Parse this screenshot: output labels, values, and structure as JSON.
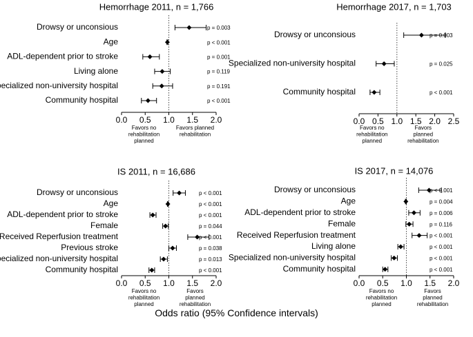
{
  "figure": {
    "xaxis_caption": "Odds ratio (95% Confidence intervals)"
  },
  "chart_data": [
    {
      "type": "forest",
      "title": "Hemorrhage 2011, n = 1,766",
      "xlim": [
        0.0,
        2.0
      ],
      "xticks": [
        "0.0",
        "0.5",
        "1.0",
        "1.5",
        "2.0"
      ],
      "reference_line": 1.0,
      "favors_left": "Favors no\nrehabilitation\nplanned",
      "favors_right": "Favors planned\nrehabilitation",
      "rows": [
        {
          "label": "Drowsy or unconsious",
          "or": 1.43,
          "lo": 1.13,
          "hi": 1.79,
          "p": "p = 0.003"
        },
        {
          "label": "Age",
          "or": 0.97,
          "lo": 0.96,
          "hi": 0.98,
          "p": "p < 0.001"
        },
        {
          "label": "ADL-dependent prior to stroke",
          "or": 0.6,
          "lo": 0.45,
          "hi": 0.8,
          "p": "p = 0.001"
        },
        {
          "label": "Living alone",
          "or": 0.86,
          "lo": 0.7,
          "hi": 1.03,
          "p": "p = 0.119"
        },
        {
          "label": "Specialized non-university hospital",
          "or": 0.85,
          "lo": 0.66,
          "hi": 1.08,
          "p": "p = 0.191"
        },
        {
          "label": "Community hospital",
          "or": 0.56,
          "lo": 0.42,
          "hi": 0.74,
          "p": "p < 0.001"
        }
      ]
    },
    {
      "type": "forest",
      "title": "Hemorrhage 2017, n = 1,703",
      "xlim": [
        0.0,
        2.5
      ],
      "xticks": [
        "0.0",
        "0.5",
        "1.0",
        "1.5",
        "2.0",
        "2.5"
      ],
      "reference_line": 1.0,
      "favors_left": "Favors no\nrehabilitation\nplanned",
      "favors_right": "Favors\nplanned\nrehabilitation",
      "rows": [
        {
          "label": "Drowsy or unconsious",
          "or": 1.65,
          "lo": 1.18,
          "hi": 2.28,
          "p": "p = 0.003"
        },
        {
          "label": "Specialized non-university hospital",
          "or": 0.66,
          "lo": 0.45,
          "hi": 0.93,
          "p": "p = 0.025"
        },
        {
          "label": "Community hospital",
          "or": 0.4,
          "lo": 0.29,
          "hi": 0.55,
          "p": "p < 0.001"
        }
      ]
    },
    {
      "type": "forest",
      "title": "IS 2011, n = 16,686",
      "xlim": [
        0.0,
        2.0
      ],
      "xticks": [
        "0.0",
        "0.5",
        "1.0",
        "1.5",
        "2.0"
      ],
      "reference_line": 1.0,
      "favors_left": "Favors no\nrehabilitation\nplanned",
      "favors_right": "Favors\nplanned\nrehabilitation",
      "rows": [
        {
          "label": "Drowsy or unconsious",
          "or": 1.22,
          "lo": 1.09,
          "hi": 1.35,
          "p": "p < 0.001"
        },
        {
          "label": "Age",
          "or": 0.98,
          "lo": 0.97,
          "hi": 0.99,
          "p": "p < 0.001"
        },
        {
          "label": "ADL-dependent prior to stroke",
          "or": 0.66,
          "lo": 0.6,
          "hi": 0.73,
          "p": "p < 0.001"
        },
        {
          "label": "Female",
          "or": 0.93,
          "lo": 0.87,
          "hi": 0.99,
          "p": "p = 0.044"
        },
        {
          "label": "Received Reperfusion treatment",
          "or": 1.6,
          "lo": 1.4,
          "hi": 1.85,
          "p": "p < 0.001"
        },
        {
          "label": "Previous stroke",
          "or": 1.08,
          "lo": 1.0,
          "hi": 1.16,
          "p": "p = 0.038"
        },
        {
          "label": "Specialized non-university hospital",
          "or": 0.89,
          "lo": 0.82,
          "hi": 0.97,
          "p": "p = 0.013"
        },
        {
          "label": "Community hospital",
          "or": 0.64,
          "lo": 0.58,
          "hi": 0.7,
          "p": "p < 0.001"
        }
      ]
    },
    {
      "type": "forest",
      "title": "IS 2017, n = 14,076",
      "xlim": [
        0.0,
        2.0
      ],
      "xticks": [
        "0.0",
        "0.5",
        "1.0",
        "1.5",
        "2.0"
      ],
      "reference_line": 1.0,
      "favors_left": "Favors no\nrehabilitation\nplanned",
      "favors_right": "Favors\nplanned\nrehabilitation",
      "rows": [
        {
          "label": "Drowsy or unconsious",
          "or": 1.48,
          "lo": 1.26,
          "hi": 1.74,
          "p": "p < 0.001"
        },
        {
          "label": "Age",
          "or": 0.99,
          "lo": 0.98,
          "hi": 1.0,
          "p": "p = 0.004"
        },
        {
          "label": "ADL-dependent prior to stroke",
          "or": 1.16,
          "lo": 1.05,
          "hi": 1.29,
          "p": "p = 0.006"
        },
        {
          "label": "Female",
          "or": 1.06,
          "lo": 0.99,
          "hi": 1.14,
          "p": "p = 0.116"
        },
        {
          "label": "Received Reperfusion treatment",
          "or": 1.27,
          "lo": 1.12,
          "hi": 1.44,
          "p": "p < 0.001"
        },
        {
          "label": "Living alone",
          "or": 0.88,
          "lo": 0.82,
          "hi": 0.95,
          "p": "p < 0.001"
        },
        {
          "label": "Specialized non-university hospital",
          "or": 0.74,
          "lo": 0.68,
          "hi": 0.81,
          "p": "p < 0.001"
        },
        {
          "label": "Community hospital",
          "or": 0.55,
          "lo": 0.5,
          "hi": 0.61,
          "p": "p < 0.001"
        }
      ]
    }
  ]
}
